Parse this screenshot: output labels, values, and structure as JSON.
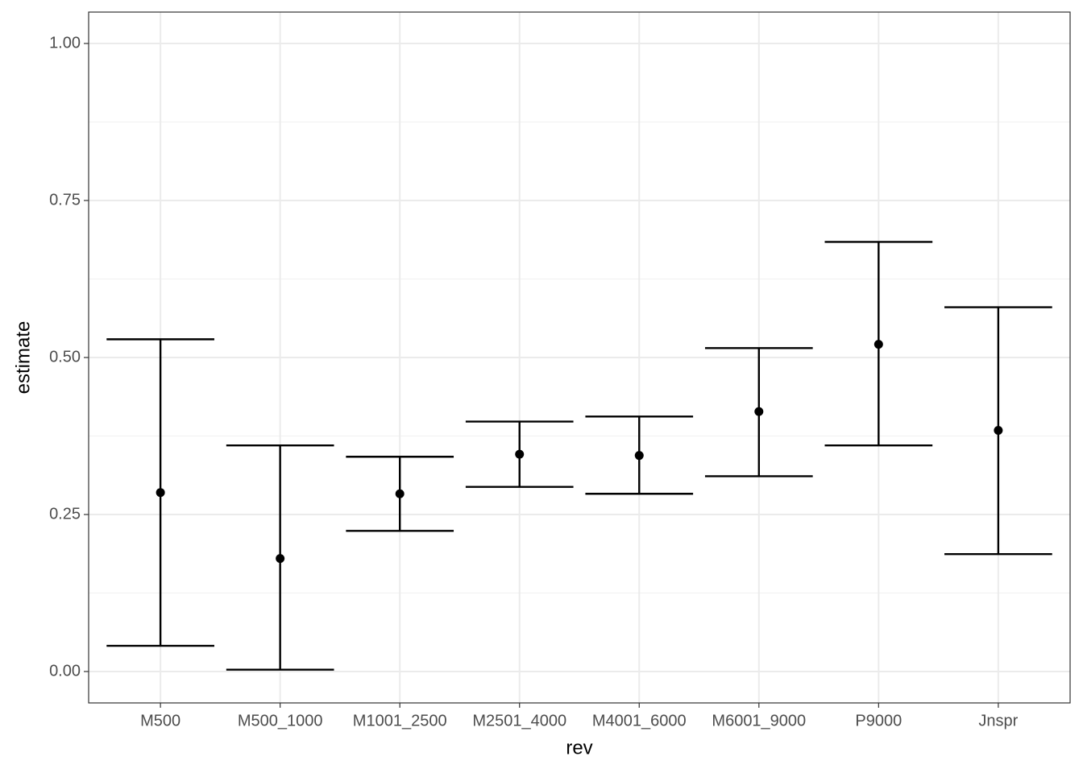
{
  "chart_data": {
    "type": "errorbar",
    "x_label": "rev",
    "y_label": "estimate",
    "categories": [
      "M500",
      "M500_1000",
      "M1001_2500",
      "M2501_4000",
      "M4001_6000",
      "M6001_9000",
      "P9000",
      "Jnspr"
    ],
    "values": [
      0.285,
      0.18,
      0.283,
      0.346,
      0.344,
      0.414,
      0.521,
      0.384
    ],
    "lower": [
      0.041,
      0.003,
      0.224,
      0.294,
      0.283,
      0.311,
      0.36,
      0.187
    ],
    "upper": [
      0.529,
      0.36,
      0.342,
      0.398,
      0.406,
      0.515,
      0.684,
      0.58
    ],
    "color": "#000000",
    "ylim": [
      -0.05,
      1.05
    ],
    "yticks": [
      {
        "value": 0,
        "label": "0.00"
      },
      {
        "value": 0.25,
        "label": "0.25"
      },
      {
        "value": 0.5,
        "label": "0.50"
      },
      {
        "value": 0.75,
        "label": "0.75"
      },
      {
        "value": 1,
        "label": "1.00"
      }
    ],
    "minor_yticks": [
      0.125,
      0.375,
      0.625,
      0.875
    ],
    "grid": true
  }
}
